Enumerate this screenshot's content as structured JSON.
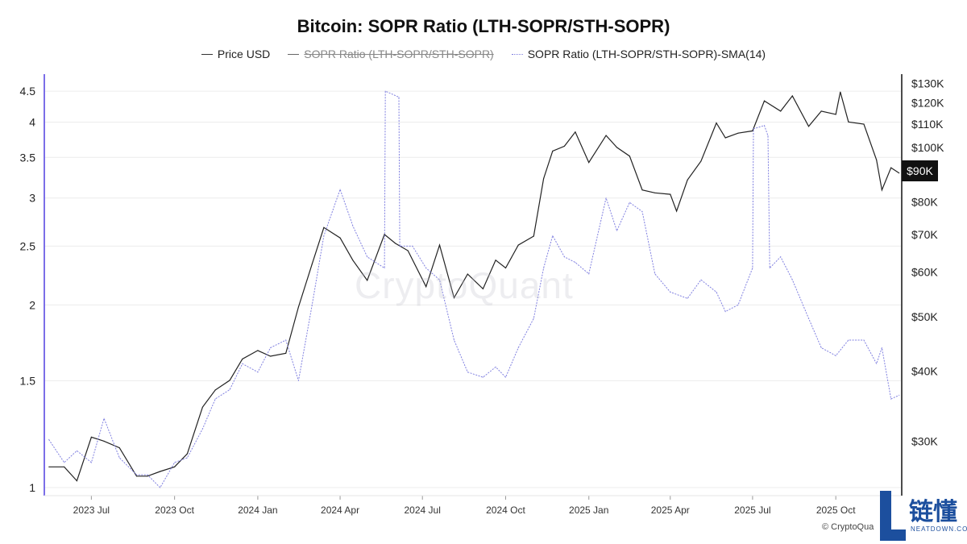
{
  "title": "Bitcoin: SOPR Ratio (LTH-SOPR/STH-SOPR)",
  "legend": [
    {
      "label": "Price USD",
      "style": "solid",
      "color": "#222222",
      "hidden": false
    },
    {
      "label": "SOPR Ratio (LTH-SOPR/STH-SOPR)",
      "style": "solid",
      "color": "#666666",
      "hidden": true
    },
    {
      "label": "SOPR Ratio (LTH-SOPR/STH-SOPR)-SMA(14)",
      "style": "dotted",
      "color": "#8080e0",
      "hidden": false
    }
  ],
  "watermark": "CryptoQuant",
  "copyright": "© CryptoQua",
  "badge": {
    "title": "链懂",
    "subtitle": "NEATDOWN.COM",
    "color": "#1c4f9e"
  },
  "current_price_label": "$90K",
  "chart_data": {
    "type": "line",
    "title": "Bitcoin: SOPR Ratio (LTH-SOPR/STH-SOPR)",
    "x_tick_labels": [
      "2023 Jul",
      "2023 Oct",
      "2024 Jan",
      "2024 Apr",
      "2024 Jul",
      "2024 Oct",
      "2025 Jan",
      "2025 Apr",
      "2025 Jul",
      "2025 Oct"
    ],
    "left_axis": {
      "scale": "log",
      "ticks": [
        "4.5",
        "4",
        "3.5",
        "3",
        "2.5",
        "2",
        "1.5",
        "1"
      ],
      "range": [
        0.97,
        4.8
      ]
    },
    "right_axis": {
      "scale": "log",
      "ticks": [
        "$130K",
        "$120K",
        "$110K",
        "$100K",
        "$80K",
        "$70K",
        "$60K",
        "$50K",
        "$40K",
        "$30K"
      ],
      "range": [
        24000,
        135000
      ]
    },
    "grid": true,
    "legend_position": "top-center",
    "series": [
      {
        "name": "Price USD",
        "axis": "right",
        "color": "#222222",
        "x": [
          "2023-05-15",
          "2023-06-01",
          "2023-06-15",
          "2023-07-01",
          "2023-07-15",
          "2023-08-01",
          "2023-08-20",
          "2023-09-01",
          "2023-09-15",
          "2023-10-01",
          "2023-10-15",
          "2023-11-01",
          "2023-11-15",
          "2023-12-01",
          "2023-12-15",
          "2024-01-01",
          "2024-01-15",
          "2024-02-01",
          "2024-02-15",
          "2024-03-01",
          "2024-03-14",
          "2024-04-01",
          "2024-04-15",
          "2024-05-01",
          "2024-05-20",
          "2024-06-01",
          "2024-06-15",
          "2024-07-05",
          "2024-07-20",
          "2024-08-05",
          "2024-08-20",
          "2024-09-06",
          "2024-09-20",
          "2024-10-01",
          "2024-10-15",
          "2024-11-01",
          "2024-11-12",
          "2024-11-22",
          "2024-12-05",
          "2024-12-17",
          "2025-01-01",
          "2025-01-20",
          "2025-02-01",
          "2025-02-15",
          "2025-03-01",
          "2025-03-15",
          "2025-04-01",
          "2025-04-08",
          "2025-04-20",
          "2025-05-05",
          "2025-05-22",
          "2025-06-01",
          "2025-06-15",
          "2025-07-01",
          "2025-07-14",
          "2025-08-01",
          "2025-08-14",
          "2025-09-01",
          "2025-09-15",
          "2025-10-01",
          "2025-10-06",
          "2025-10-15",
          "2025-11-01",
          "2025-11-15",
          "2025-11-21",
          "2025-12-01",
          "2025-12-10"
        ],
        "values": [
          27000,
          27000,
          25500,
          30500,
          30000,
          29200,
          26000,
          26000,
          26500,
          27000,
          28500,
          34500,
          37000,
          38500,
          42000,
          43500,
          42500,
          43000,
          52000,
          62000,
          72000,
          69000,
          63000,
          58000,
          70000,
          67500,
          65500,
          56500,
          67000,
          54000,
          59500,
          56000,
          63000,
          61000,
          67000,
          69500,
          88000,
          98500,
          100500,
          106500,
          94000,
          105000,
          100000,
          96500,
          84000,
          83000,
          82500,
          77000,
          87500,
          94500,
          110500,
          104000,
          106000,
          107000,
          121000,
          116000,
          123500,
          109000,
          116000,
          114500,
          125500,
          111000,
          110000,
          95000,
          84000,
          92000,
          90000
        ]
      },
      {
        "name": "SOPR Ratio (LTH-SOPR/STH-SOPR)-SMA(14)",
        "axis": "left",
        "color": "#8080e0",
        "x": [
          "2023-05-15",
          "2023-06-01",
          "2023-06-15",
          "2023-07-01",
          "2023-07-15",
          "2023-08-01",
          "2023-08-20",
          "2023-09-01",
          "2023-09-15",
          "2023-10-01",
          "2023-10-15",
          "2023-11-01",
          "2023-11-15",
          "2023-12-01",
          "2023-12-15",
          "2024-01-01",
          "2024-01-15",
          "2024-02-01",
          "2024-02-15",
          "2024-03-01",
          "2024-03-14",
          "2024-04-01",
          "2024-04-15",
          "2024-05-01",
          "2024-05-20",
          "2024-05-21",
          "2024-06-05",
          "2024-06-06",
          "2024-06-20",
          "2024-07-05",
          "2024-07-20",
          "2024-08-05",
          "2024-08-20",
          "2024-09-06",
          "2024-09-20",
          "2024-10-01",
          "2024-10-15",
          "2024-11-01",
          "2024-11-12",
          "2024-11-22",
          "2024-12-05",
          "2024-12-17",
          "2025-01-01",
          "2025-01-20",
          "2025-02-01",
          "2025-02-15",
          "2025-03-01",
          "2025-03-15",
          "2025-04-01",
          "2025-04-20",
          "2025-05-05",
          "2025-05-22",
          "2025-06-01",
          "2025-06-15",
          "2025-07-01",
          "2025-07-02",
          "2025-07-14",
          "2025-07-18",
          "2025-07-20",
          "2025-08-01",
          "2025-08-14",
          "2025-09-01",
          "2025-09-15",
          "2025-10-01",
          "2025-10-15",
          "2025-11-01",
          "2025-11-15",
          "2025-11-21",
          "2025-12-01",
          "2025-12-10"
        ],
        "values": [
          1.2,
          1.1,
          1.15,
          1.1,
          1.3,
          1.12,
          1.05,
          1.05,
          1.0,
          1.1,
          1.12,
          1.25,
          1.4,
          1.45,
          1.6,
          1.55,
          1.7,
          1.75,
          1.5,
          2.0,
          2.6,
          3.1,
          2.7,
          2.4,
          2.3,
          4.5,
          4.4,
          2.5,
          2.5,
          2.3,
          2.2,
          1.75,
          1.55,
          1.52,
          1.58,
          1.52,
          1.7,
          1.9,
          2.3,
          2.6,
          2.4,
          2.35,
          2.25,
          3.0,
          2.65,
          2.95,
          2.85,
          2.25,
          2.1,
          2.05,
          2.2,
          2.1,
          1.95,
          2.0,
          2.3,
          3.9,
          3.95,
          3.8,
          2.3,
          2.4,
          2.2,
          1.9,
          1.7,
          1.65,
          1.75,
          1.75,
          1.6,
          1.7,
          1.4,
          1.42
        ]
      }
    ]
  }
}
